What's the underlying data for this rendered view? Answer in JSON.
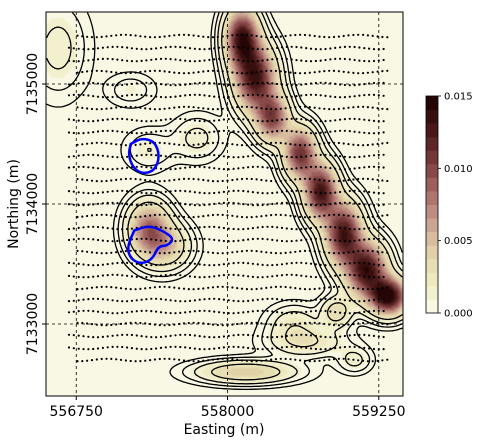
{
  "chart_data": {
    "type": "heatmap",
    "title": "",
    "xlabel": "Easting (m)",
    "ylabel": "Northing (m)",
    "xlim": [
      556500,
      559450
    ],
    "ylim": [
      7132400,
      7135600
    ],
    "x_ticks": [
      {
        "value": 556750,
        "label": "556750"
      },
      {
        "value": 558000,
        "label": "558000"
      },
      {
        "value": 559250,
        "label": "559250"
      }
    ],
    "y_ticks": [
      {
        "value": 7133000,
        "label": "7133000"
      },
      {
        "value": 7134000,
        "label": "7134000"
      },
      {
        "value": 7135000,
        "label": "7135000"
      }
    ],
    "grid": "dashed",
    "colorbar": {
      "range": [
        0,
        0.015
      ],
      "ticks": [
        {
          "value": 0.0,
          "label": "0.000"
        },
        {
          "value": 0.005,
          "label": "0.005"
        },
        {
          "value": 0.01,
          "label": "0.010"
        },
        {
          "value": 0.015,
          "label": "0.015"
        }
      ],
      "colormap": "pink"
    },
    "anomalies": [
      {
        "x": 558120,
        "y": 7135380,
        "peak": 0.0135,
        "sx": 90,
        "sy": 160
      },
      {
        "x": 558230,
        "y": 7135050,
        "peak": 0.013,
        "sx": 110,
        "sy": 180
      },
      {
        "x": 558370,
        "y": 7134720,
        "peak": 0.01,
        "sx": 90,
        "sy": 130
      },
      {
        "x": 558600,
        "y": 7134420,
        "peak": 0.011,
        "sx": 90,
        "sy": 140
      },
      {
        "x": 558770,
        "y": 7134100,
        "peak": 0.013,
        "sx": 90,
        "sy": 150
      },
      {
        "x": 558960,
        "y": 7133750,
        "peak": 0.013,
        "sx": 100,
        "sy": 170
      },
      {
        "x": 559150,
        "y": 7133450,
        "peak": 0.0135,
        "sx": 110,
        "sy": 150
      },
      {
        "x": 559330,
        "y": 7133230,
        "peak": 0.015,
        "sx": 100,
        "sy": 100
      },
      {
        "x": 557350,
        "y": 7133800,
        "peak": 0.008,
        "sx": 110,
        "sy": 140
      },
      {
        "x": 557480,
        "y": 7133650,
        "peak": 0.005,
        "sx": 130,
        "sy": 120
      },
      {
        "x": 557350,
        "y": 7134450,
        "peak": 0.0012,
        "sx": 130,
        "sy": 110
      },
      {
        "x": 557750,
        "y": 7134550,
        "peak": 0.0015,
        "sx": 130,
        "sy": 120
      },
      {
        "x": 556600,
        "y": 7135300,
        "peak": 0.0015,
        "sx": 160,
        "sy": 260
      },
      {
        "x": 557200,
        "y": 7134950,
        "peak": 0.001,
        "sx": 130,
        "sy": 90
      },
      {
        "x": 558550,
        "y": 7133000,
        "peak": 0.002,
        "sx": 140,
        "sy": 100
      },
      {
        "x": 558900,
        "y": 7133100,
        "peak": 0.0035,
        "sx": 80,
        "sy": 80
      },
      {
        "x": 558150,
        "y": 7132600,
        "peak": 0.0045,
        "sx": 260,
        "sy": 60
      },
      {
        "x": 558650,
        "y": 7132850,
        "peak": 0.0025,
        "sx": 200,
        "sy": 80
      },
      {
        "x": 559050,
        "y": 7132700,
        "peak": 0.0015,
        "sx": 90,
        "sy": 70
      }
    ],
    "survey_lines_northing": [
      7135400,
      7135300,
      7135200,
      7135100,
      7135000,
      7134900,
      7134800,
      7134700,
      7134600,
      7134500,
      7134400,
      7134300,
      7134200,
      7134100,
      7134000,
      7133900,
      7133800,
      7133700,
      7133600,
      7133500,
      7133400,
      7133300,
      7133200,
      7133100,
      7133000,
      7132900,
      7132800,
      7132700
    ],
    "outlines": [
      {
        "name": "",
        "color": "#0000ff",
        "points": [
          [
            557200,
            7134500
          ],
          [
            557290,
            7134550
          ],
          [
            557400,
            7134520
          ],
          [
            557440,
            7134400
          ],
          [
            557400,
            7134280
          ],
          [
            557300,
            7134250
          ],
          [
            557220,
            7134300
          ],
          [
            557180,
            7134410
          ],
          [
            557200,
            7134500
          ]
        ]
      },
      {
        "name": "",
        "color": "#0000ff",
        "points": [
          [
            557230,
            7133780
          ],
          [
            557350,
            7133820
          ],
          [
            557460,
            7133780
          ],
          [
            557560,
            7133710
          ],
          [
            557500,
            7133650
          ],
          [
            557430,
            7133650
          ],
          [
            557380,
            7133540
          ],
          [
            557290,
            7133500
          ],
          [
            557200,
            7133540
          ],
          [
            557170,
            7133640
          ],
          [
            557230,
            7133780
          ]
        ]
      }
    ]
  }
}
